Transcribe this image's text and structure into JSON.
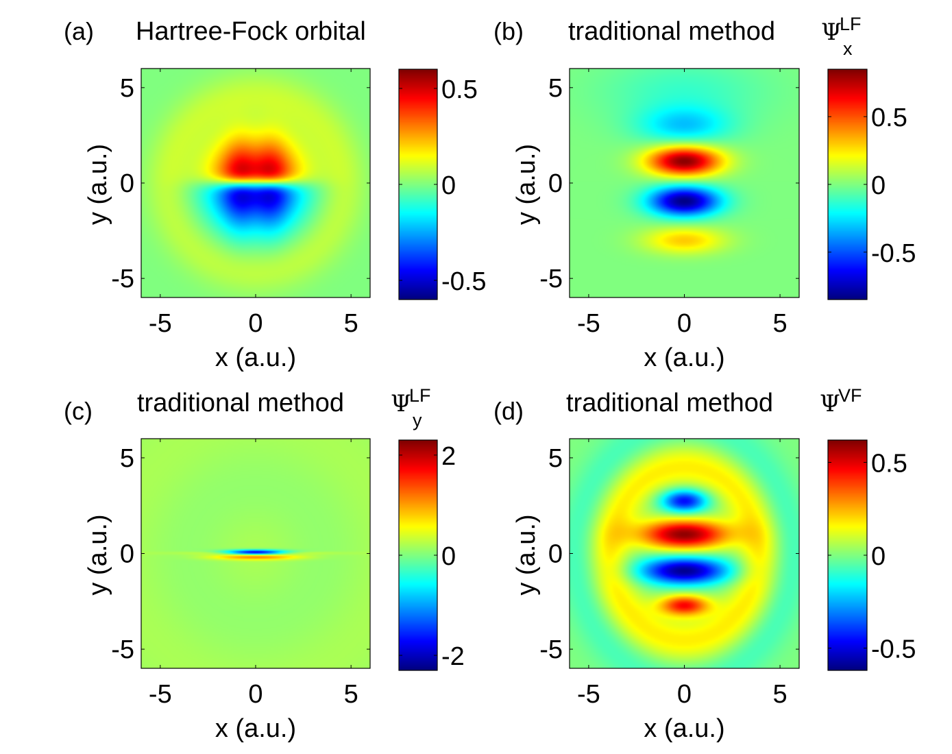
{
  "colors": {
    "frame": "#000000",
    "background": "#ffffff",
    "colormap": "jet"
  },
  "chart_data": [
    {
      "type": "heatmap",
      "panel_label": "(a)",
      "title": "Hartree-Fock orbital",
      "symbol": "",
      "superscript": "",
      "subscript": "",
      "xlabel": "x (a.u.)",
      "ylabel": "y (a.u.)",
      "xlim": [
        -6,
        6
      ],
      "ylim": [
        -6,
        6
      ],
      "xticks": [
        "-5",
        "0",
        "5"
      ],
      "yticks": [
        "-5",
        "0",
        "5"
      ],
      "colorbar": {
        "range": [
          -0.6,
          0.6
        ],
        "ticks": [
          -0.5,
          0,
          0.5
        ],
        "tick_labels": [
          "-0.5",
          "0",
          "0.5"
        ]
      },
      "pattern": "p-type orbital: positive lobe centred near (0, 1.3), negative lobe near (0, -1.3), node along y = 0"
    },
    {
      "type": "heatmap",
      "panel_label": "(b)",
      "title": "traditional method",
      "symbol": "Ψ",
      "superscript": "LF",
      "subscript": "x",
      "xlabel": "x (a.u.)",
      "ylabel": "y (a.u.)",
      "xlim": [
        -6,
        6
      ],
      "ylim": [
        -6,
        6
      ],
      "xticks": [
        "-5",
        "0",
        "5"
      ],
      "yticks": [
        "-5",
        "0",
        "5"
      ],
      "colorbar": {
        "range": [
          -0.85,
          0.85
        ],
        "ticks": [
          -0.5,
          0,
          0.5
        ],
        "tick_labels": [
          "-0.5",
          "0",
          "0.5"
        ]
      },
      "pattern": "two compact lobes at y = +1.2 (positive) and y = -0.9 (negative), weak side lobes near y = +3 (negative) and y = -3 (positive)"
    },
    {
      "type": "heatmap",
      "panel_label": "(c)",
      "title": "traditional method",
      "symbol": "Ψ",
      "superscript": "LF",
      "subscript": "y",
      "xlabel": "x (a.u.)",
      "ylabel": "y (a.u.)",
      "xlim": [
        -6,
        6
      ],
      "ylim": [
        -6,
        6
      ],
      "xticks": [
        "-5",
        "0",
        "5"
      ],
      "yticks": [
        "-5",
        "0",
        "5"
      ],
      "colorbar": {
        "range": [
          -2.3,
          2.3
        ],
        "ticks": [
          -2,
          0,
          2
        ],
        "tick_labels": [
          "-2",
          "0",
          "2"
        ]
      },
      "pattern": "thin horizontal streak along y = 0 spanning x in [-5, 5], strongest near the origin"
    },
    {
      "type": "heatmap",
      "panel_label": "(d)",
      "title": "traditional method",
      "symbol": "Ψ",
      "superscript": "VF",
      "subscript": "",
      "xlabel": "x (a.u.)",
      "ylabel": "y (a.u.)",
      "xlim": [
        -6,
        6
      ],
      "ylim": [
        -6,
        6
      ],
      "xticks": [
        "-5",
        "0",
        "5"
      ],
      "yticks": [
        "-5",
        "0",
        "5"
      ],
      "colorbar": {
        "range": [
          -0.62,
          0.62
        ],
        "ticks": [
          -0.5,
          0,
          0.5
        ],
        "tick_labels": [
          "-0.5",
          "0",
          "0.5"
        ]
      },
      "pattern": "alternating horizontal lobes: y = 2.8 negative, y = 1.0 positive, y = -0.9 negative, y = -2.7 positive, faint outer rings"
    }
  ]
}
